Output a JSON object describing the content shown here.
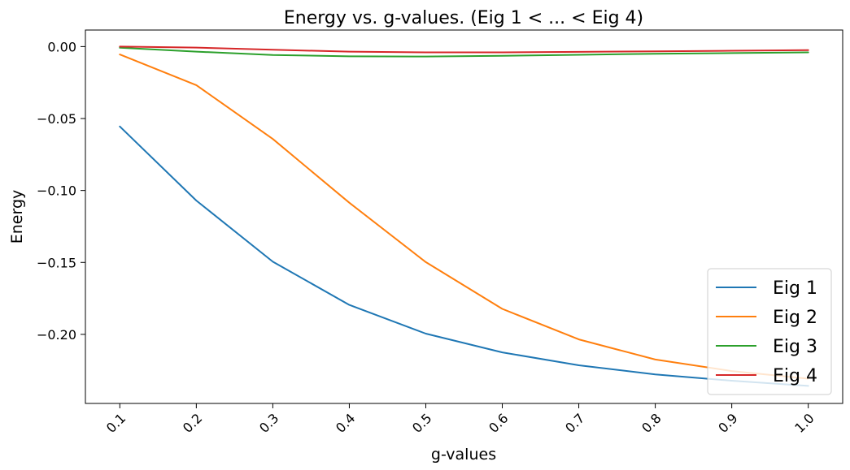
{
  "chart_data": {
    "type": "line",
    "title": "Energy vs. g-values. (Eig 1 < ... < Eig 4)",
    "xlabel": "g-values",
    "ylabel": "Energy",
    "x": [
      0.1,
      0.2,
      0.3,
      0.4,
      0.5,
      0.6,
      0.7,
      0.8,
      0.9,
      1.0
    ],
    "x_tick_labels": [
      "0.1",
      "0.2",
      "0.3",
      "0.4",
      "0.5",
      "0.6",
      "0.7",
      "0.8",
      "0.9",
      "1.0"
    ],
    "y_ticks": [
      0.0,
      -0.05,
      -0.1,
      -0.15,
      -0.2
    ],
    "y_tick_labels": [
      "0.00",
      "−0.05",
      "−0.10",
      "−0.15",
      "−0.20"
    ],
    "xlim": [
      0.055,
      1.045
    ],
    "ylim": [
      -0.248,
      0.0115
    ],
    "grid": false,
    "legend_position": "lower right",
    "series": [
      {
        "name": "Eig 1",
        "color": "#1f77b4",
        "values": [
          -0.0555,
          -0.107,
          -0.1495,
          -0.1795,
          -0.1995,
          -0.2125,
          -0.2215,
          -0.2278,
          -0.2322,
          -0.2358
        ]
      },
      {
        "name": "Eig 2",
        "color": "#ff7f0e",
        "values": [
          -0.0055,
          -0.0268,
          -0.0642,
          -0.1085,
          -0.1498,
          -0.1823,
          -0.2035,
          -0.2175,
          -0.2255,
          -0.2308
        ]
      },
      {
        "name": "Eig 3",
        "color": "#2ca02c",
        "values": [
          -0.0008,
          -0.0035,
          -0.0058,
          -0.0068,
          -0.0069,
          -0.0064,
          -0.0057,
          -0.005,
          -0.0045,
          -0.004
        ]
      },
      {
        "name": "Eig 4",
        "color": "#d62728",
        "values": [
          0.0,
          -0.0007,
          -0.0022,
          -0.0035,
          -0.004,
          -0.004,
          -0.0037,
          -0.0033,
          -0.0029,
          -0.0025
        ]
      }
    ]
  }
}
